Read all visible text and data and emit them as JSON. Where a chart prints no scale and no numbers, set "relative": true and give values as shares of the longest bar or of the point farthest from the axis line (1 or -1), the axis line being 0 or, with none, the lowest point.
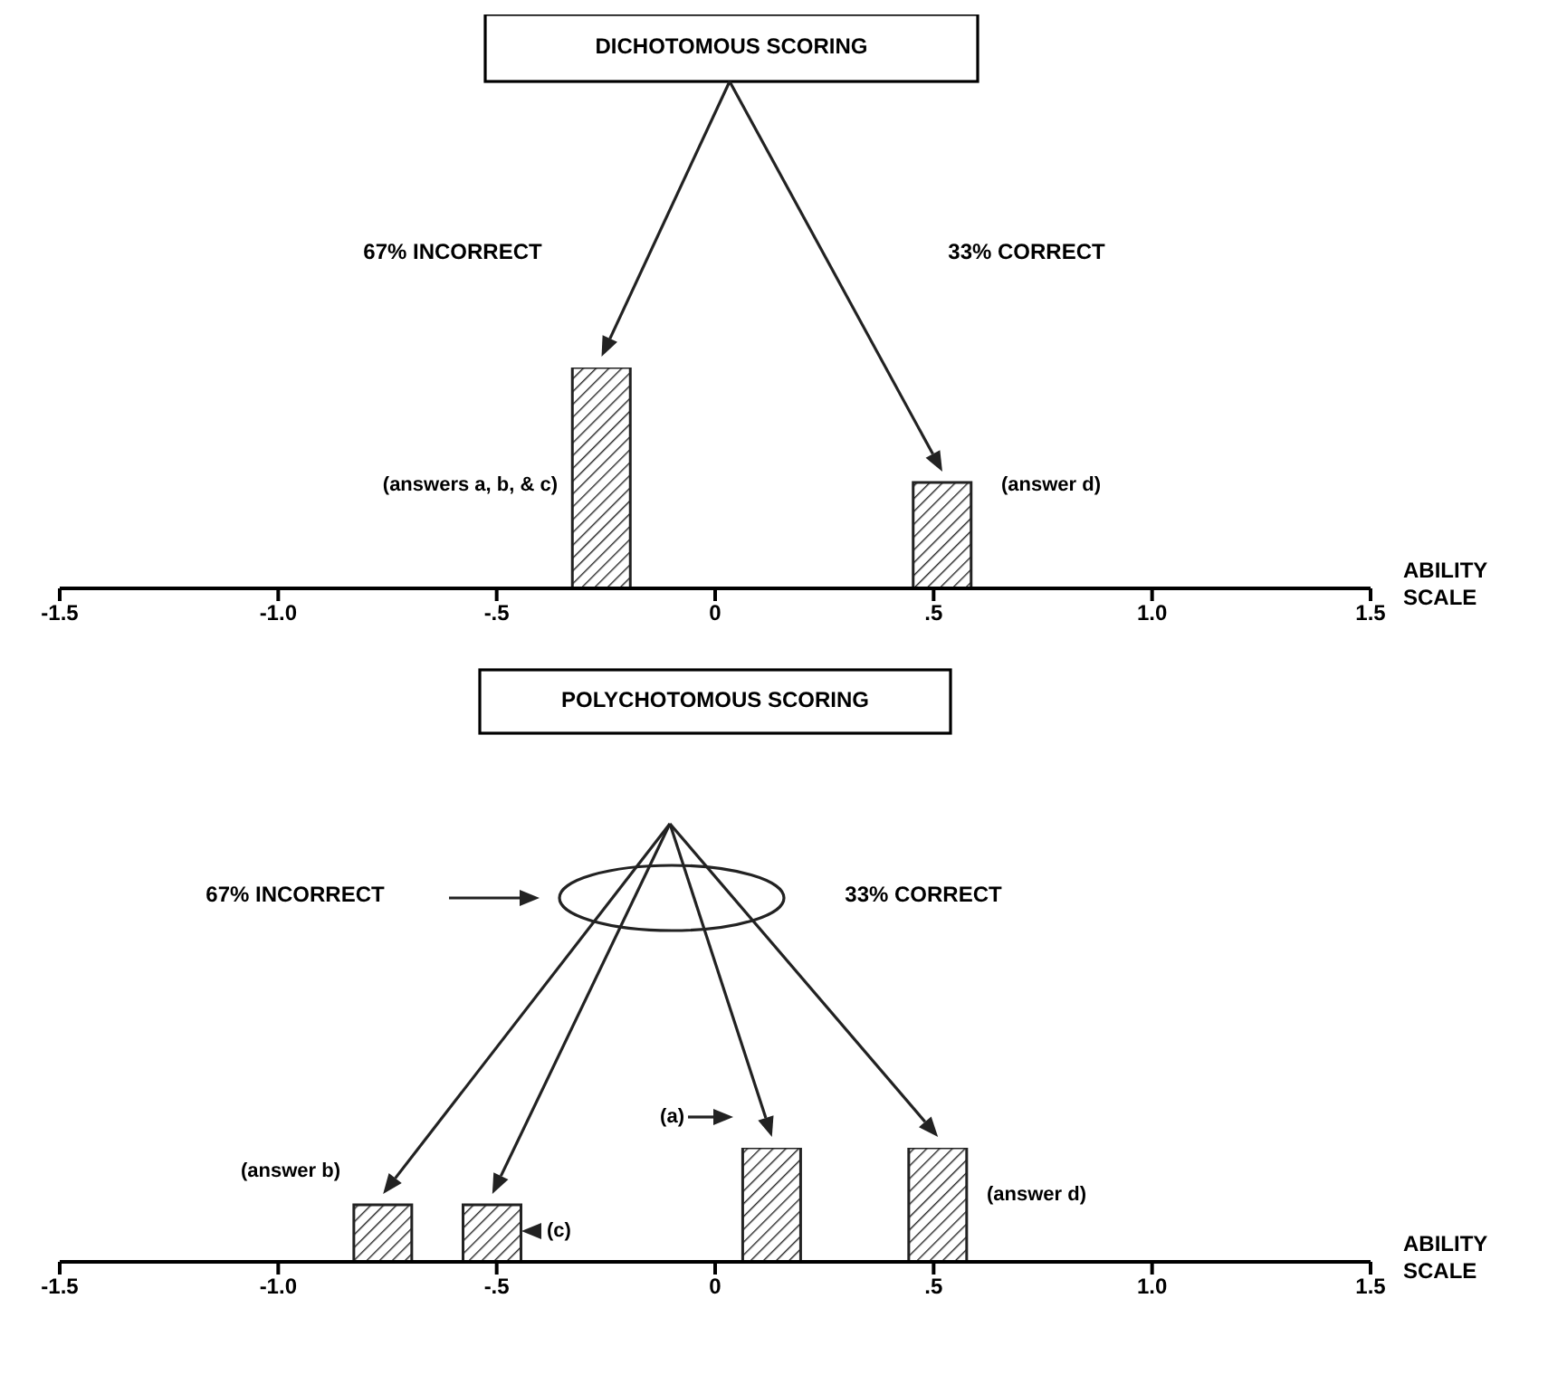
{
  "chart_data": [
    {
      "type": "bar",
      "title": "DICHOTOMOUS SCORING",
      "xlabel": "ABILITY SCALE",
      "relative": true,
      "x": [
        -0.26,
        0.52
      ],
      "values": [
        1,
        0.48
      ],
      "color": "#222222",
      "xlim": [
        -1.5,
        1.5
      ],
      "xticks": [
        {
          "value": -1.5,
          "label": "-1.5"
        },
        {
          "value": -1,
          "label": "-1.0"
        },
        {
          "value": -0.5,
          "label": "-.5"
        },
        0,
        {
          "value": 0.5,
          "label": ".5"
        },
        {
          "value": 1,
          "label": "1.0"
        },
        {
          "value": 1.5,
          "label": "1.5"
        }
      ],
      "annotations": [
        "67% INCORRECT",
        "33% CORRECT",
        "(answers a, b, & c)",
        "(answer d)"
      ]
    },
    {
      "type": "bar",
      "title": "POLYCHOTOMOUS SCORING",
      "xlabel": "ABILITY SCALE",
      "relative": true,
      "x": [
        -0.76,
        -0.51,
        0.13,
        0.51
      ],
      "values": [
        0.5,
        0.5,
        1,
        1
      ],
      "color": "#222222",
      "xlim": [
        -1.5,
        1.5
      ],
      "xticks": [
        {
          "value": -1.5,
          "label": "-1.5"
        },
        {
          "value": -1,
          "label": "-1.0"
        },
        {
          "value": -0.5,
          "label": "-.5"
        },
        0,
        {
          "value": 0.5,
          "label": ".5"
        },
        {
          "value": 1,
          "label": "1.0"
        },
        {
          "value": 1.5,
          "label": "1.5"
        }
      ],
      "annotations": [
        "67% INCORRECT",
        "33% CORRECT",
        "(answer b)",
        "(c)",
        "(a)",
        "(answer d)"
      ]
    }
  ]
}
